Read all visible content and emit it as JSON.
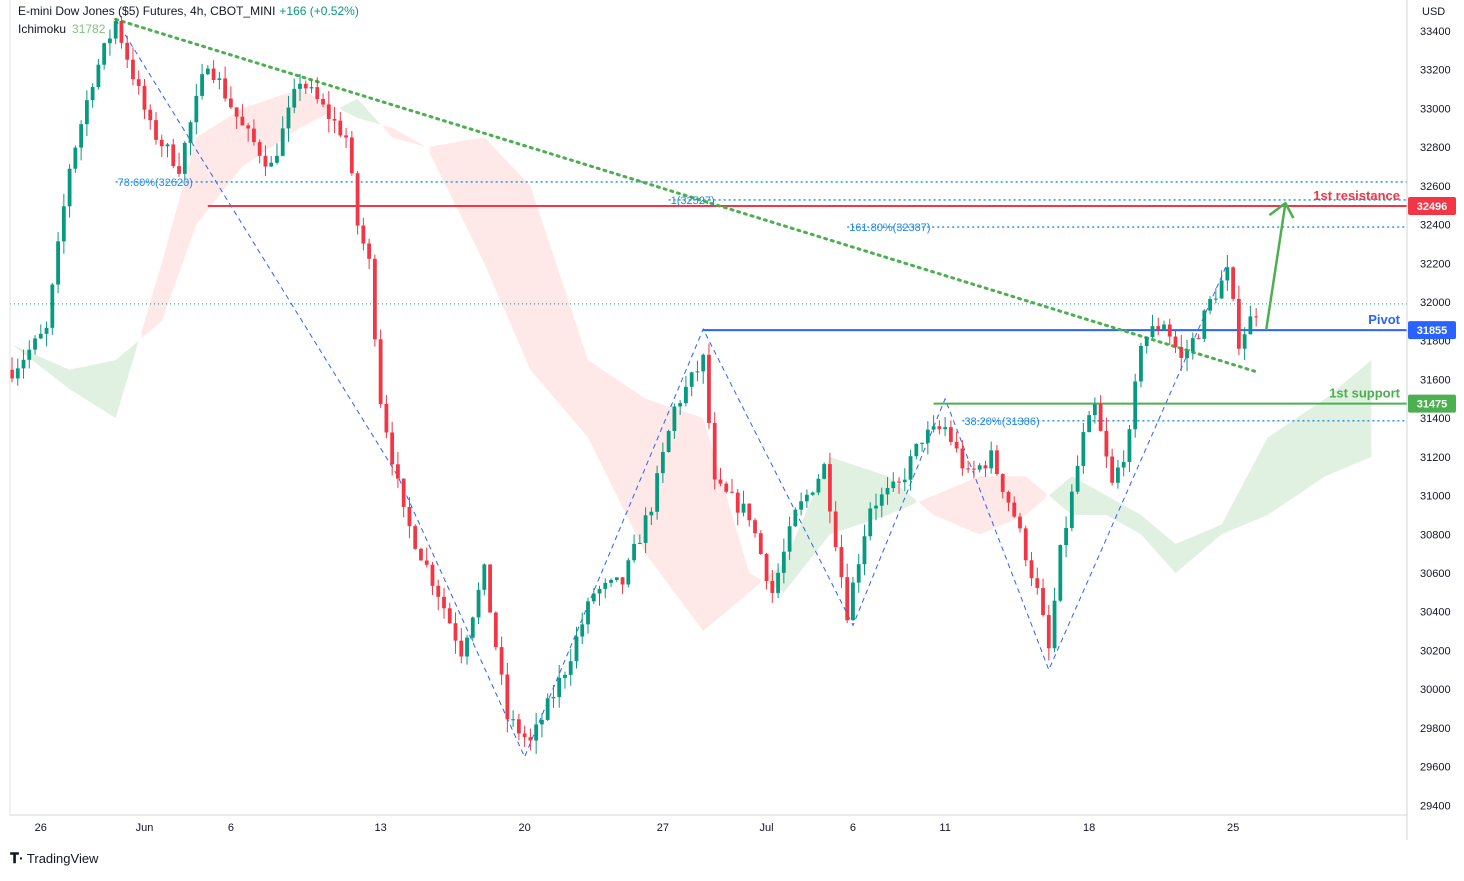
{
  "header": {
    "title": "E-mini Dow Jones ($5) Futures, 4h, CBOT_MINI",
    "change": "+166 (+0.52%)",
    "indicator_name": "Ichimoku",
    "indicator_value": "31782"
  },
  "footer": {
    "brand": "TradingView"
  },
  "colors": {
    "bull": "#089981",
    "bear": "#f23645",
    "resistance": "#f23645",
    "pivot": "#2962ff",
    "support": "#4caf50",
    "trendline": "#4caf50",
    "fib": "#1e88e5",
    "cloud_bull": "#c8e6c9",
    "cloud_bear": "#ffd6d6"
  },
  "chart_data": {
    "type": "candlestick",
    "symbol": "E-mini Dow Jones ($5) Futures",
    "timeframe": "4h",
    "currency": "USD",
    "ylim": [
      29350,
      33560
    ],
    "y_ticks": [
      29400,
      29600,
      29800,
      30000,
      30200,
      30400,
      30600,
      30800,
      31000,
      31200,
      31400,
      31600,
      31800,
      32000,
      32200,
      32400,
      32600,
      32800,
      33000,
      33200,
      33400
    ],
    "x_ticks": [
      {
        "label": "26",
        "bar": 5
      },
      {
        "label": "Jun",
        "bar": 23
      },
      {
        "label": "6",
        "bar": 38
      },
      {
        "label": "13",
        "bar": 64
      },
      {
        "label": "20",
        "bar": 89
      },
      {
        "label": "27",
        "bar": 113
      },
      {
        "label": "Jul",
        "bar": 131
      },
      {
        "label": "6",
        "bar": 146
      },
      {
        "label": "11",
        "bar": 162
      },
      {
        "label": "18",
        "bar": 187
      },
      {
        "label": "25",
        "bar": 212
      }
    ],
    "price_path": [
      {
        "bar": 0,
        "price": 31650
      },
      {
        "bar": 6,
        "price": 31850
      },
      {
        "bar": 10,
        "price": 32700
      },
      {
        "bar": 14,
        "price": 33150
      },
      {
        "bar": 18,
        "price": 33450
      },
      {
        "bar": 24,
        "price": 32900
      },
      {
        "bar": 29,
        "price": 32700
      },
      {
        "bar": 34,
        "price": 33250
      },
      {
        "bar": 40,
        "price": 32900
      },
      {
        "bar": 45,
        "price": 32700
      },
      {
        "bar": 50,
        "price": 33150
      },
      {
        "bar": 58,
        "price": 32850
      },
      {
        "bar": 60,
        "price": 32400
      },
      {
        "bar": 62,
        "price": 32200
      },
      {
        "bar": 64,
        "price": 31500
      },
      {
        "bar": 68,
        "price": 30900
      },
      {
        "bar": 74,
        "price": 30500
      },
      {
        "bar": 78,
        "price": 30200
      },
      {
        "bar": 82,
        "price": 30600
      },
      {
        "bar": 86,
        "price": 29850
      },
      {
        "bar": 90,
        "price": 29720
      },
      {
        "bar": 96,
        "price": 30100
      },
      {
        "bar": 101,
        "price": 30500
      },
      {
        "bar": 106,
        "price": 30550
      },
      {
        "bar": 111,
        "price": 30950
      },
      {
        "bar": 115,
        "price": 31450
      },
      {
        "bar": 120,
        "price": 31700
      },
      {
        "bar": 122,
        "price": 31050
      },
      {
        "bar": 128,
        "price": 30900
      },
      {
        "bar": 132,
        "price": 30500
      },
      {
        "bar": 136,
        "price": 30900
      },
      {
        "bar": 141,
        "price": 31150
      },
      {
        "bar": 145,
        "price": 30400
      },
      {
        "bar": 149,
        "price": 30950
      },
      {
        "bar": 154,
        "price": 31050
      },
      {
        "bar": 158,
        "price": 31300
      },
      {
        "bar": 162,
        "price": 31350
      },
      {
        "bar": 166,
        "price": 31100
      },
      {
        "bar": 170,
        "price": 31200
      },
      {
        "bar": 174,
        "price": 30900
      },
      {
        "bar": 178,
        "price": 30500
      },
      {
        "bar": 180,
        "price": 30200
      },
      {
        "bar": 182,
        "price": 30700
      },
      {
        "bar": 186,
        "price": 31300
      },
      {
        "bar": 188,
        "price": 31450
      },
      {
        "bar": 191,
        "price": 31050
      },
      {
        "bar": 194,
        "price": 31300
      },
      {
        "bar": 196,
        "price": 31800
      },
      {
        "bar": 200,
        "price": 31900
      },
      {
        "bar": 203,
        "price": 31700
      },
      {
        "bar": 206,
        "price": 31850
      },
      {
        "bar": 208,
        "price": 32000
      },
      {
        "bar": 211,
        "price": 32150
      },
      {
        "bar": 213,
        "price": 31800
      },
      {
        "bar": 216,
        "price": 31960
      }
    ],
    "ichimoku_cloud": [
      {
        "bar": 0,
        "a": 31780,
        "b": 31780
      },
      {
        "bar": 10,
        "a": 31650,
        "b": 31550
      },
      {
        "bar": 18,
        "a": 31700,
        "b": 31400
      },
      {
        "bar": 26,
        "a": 31900,
        "b": 32200
      },
      {
        "bar": 32,
        "a": 32400,
        "b": 32850
      },
      {
        "bar": 40,
        "a": 32700,
        "b": 33000
      },
      {
        "bar": 50,
        "a": 32900,
        "b": 33100
      },
      {
        "bar": 60,
        "a": 33050,
        "b": 32950
      },
      {
        "bar": 66,
        "a": 32850,
        "b": 32900
      },
      {
        "bar": 72,
        "a": 32800,
        "b": 32800
      },
      {
        "bar": 82,
        "a": 32200,
        "b": 32850
      },
      {
        "bar": 90,
        "a": 31650,
        "b": 32600
      },
      {
        "bar": 100,
        "a": 31300,
        "b": 31700
      },
      {
        "bar": 110,
        "a": 30700,
        "b": 31500
      },
      {
        "bar": 120,
        "a": 30300,
        "b": 31400
      },
      {
        "bar": 128,
        "a": 30500,
        "b": 30600
      },
      {
        "bar": 134,
        "a": 30650,
        "b": 30500
      },
      {
        "bar": 142,
        "a": 31200,
        "b": 30800
      },
      {
        "bar": 152,
        "a": 31100,
        "b": 30900
      },
      {
        "bar": 160,
        "a": 30900,
        "b": 31000
      },
      {
        "bar": 168,
        "a": 30800,
        "b": 31100
      },
      {
        "bar": 176,
        "a": 30900,
        "b": 31100
      },
      {
        "bar": 184,
        "a": 31100,
        "b": 30900
      },
      {
        "bar": 190,
        "a": 31000,
        "b": 30900
      },
      {
        "bar": 196,
        "a": 30900,
        "b": 30800
      },
      {
        "bar": 202,
        "a": 30750,
        "b": 30600
      },
      {
        "bar": 210,
        "a": 30850,
        "b": 30800
      },
      {
        "bar": 218,
        "a": 31300,
        "b": 30900
      },
      {
        "bar": 228,
        "a": 31500,
        "b": 31100
      },
      {
        "bar": 236,
        "a": 31700,
        "b": 31200
      }
    ],
    "zigzag": [
      {
        "bar": 18,
        "price": 33460
      },
      {
        "bar": 67,
        "price": 31100
      },
      {
        "bar": 89,
        "price": 29650
      },
      {
        "bar": 120,
        "price": 31860
      },
      {
        "bar": 146,
        "price": 30330
      },
      {
        "bar": 162,
        "price": 31500
      },
      {
        "bar": 180,
        "price": 30100
      },
      {
        "bar": 211,
        "price": 32200
      }
    ],
    "trendline": [
      {
        "bar": 18,
        "price": 33460
      },
      {
        "bar": 216,
        "price": 31640
      }
    ],
    "levels": [
      {
        "name": "1st resistance",
        "price": 32496,
        "label": "32496",
        "color": "#f23645",
        "start_bar": 34
      },
      {
        "name": "Pivot",
        "price": 31855,
        "label": "31855",
        "color": "#2962ff",
        "start_bar": 120
      },
      {
        "name": "1st support",
        "price": 31475,
        "label": "31475",
        "color": "#4caf50",
        "start_bar": 160
      }
    ],
    "fib_levels": [
      {
        "label": "78.60%(32620)",
        "price": 32620,
        "start_bar": 18
      },
      {
        "label": "1(32527)",
        "price": 32527,
        "start_bar": 114
      },
      {
        "label": "161.80%(32387)",
        "price": 32387,
        "start_bar": 145
      },
      {
        "label": "38.20%(31386)",
        "price": 31386,
        "start_bar": 165
      }
    ],
    "last_price_line": 31990,
    "projection_arrow": {
      "from_bar": 216,
      "from_price": 31855,
      "to_bar": 219,
      "to_price": 32490
    }
  }
}
